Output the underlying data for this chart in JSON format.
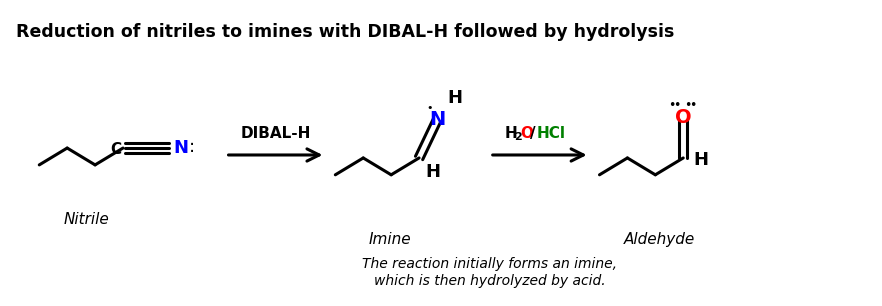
{
  "title": "Reduction of nitriles to imines with DIBAL-H followed by hydrolysis",
  "title_fontsize": 12.5,
  "bg_color": "#ffffff",
  "label_nitrile": "Nitrile",
  "label_imine": "Imine",
  "label_aldehyde": "Aldehyde",
  "reagent1": "DIBAL-H",
  "note_line1": "The reaction initially forms an imine,",
  "note_line2": "which is then hydrolyzed by acid.",
  "black": "#000000",
  "blue": "#0000ff",
  "red": "#ff0000",
  "green": "#008000",
  "lw": 2.2
}
